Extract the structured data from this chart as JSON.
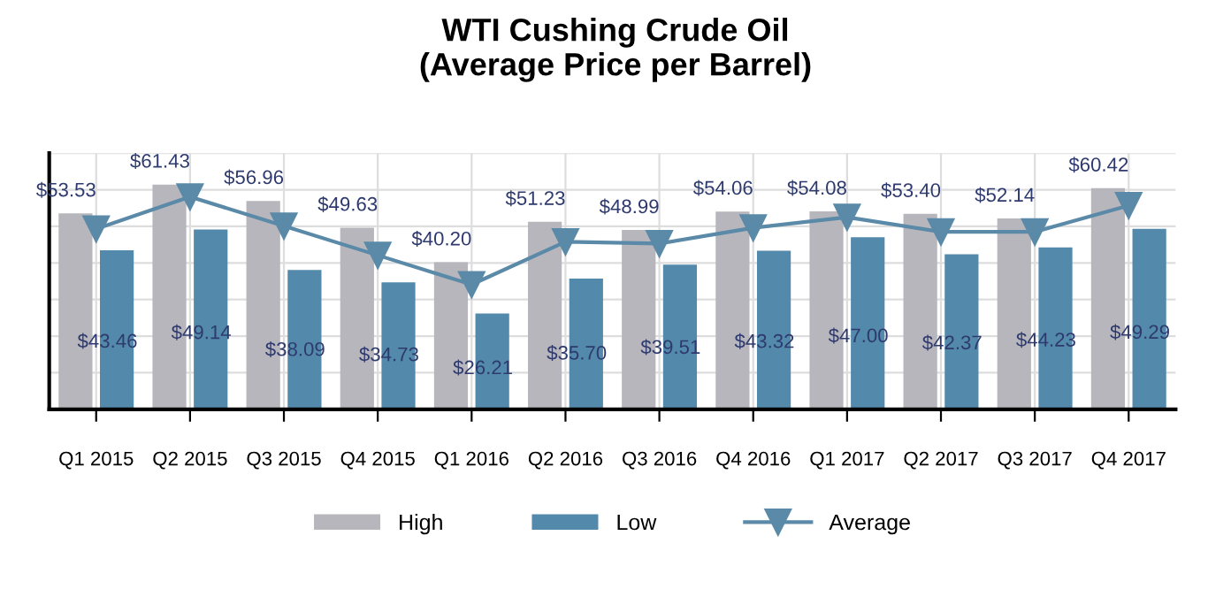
{
  "chart_data": {
    "type": "bar",
    "title": "WTI Cushing Crude Oil\n(Average Price per Barrel)",
    "categories": [
      "Q1 2015",
      "Q2 2015",
      "Q3 2015",
      "Q4 2015",
      "Q1 2016",
      "Q2 2016",
      "Q3 2016",
      "Q4 2016",
      "Q1 2017",
      "Q2 2017",
      "Q3 2017",
      "Q4 2017"
    ],
    "series": [
      {
        "name": "High",
        "color": "#b6b6bc",
        "values": [
          53.53,
          61.43,
          56.96,
          49.63,
          40.2,
          51.23,
          48.99,
          54.06,
          54.08,
          53.4,
          52.14,
          60.42
        ],
        "value_labels": [
          "$53.53",
          "$61.43",
          "$56.96",
          "$49.63",
          "$40.20",
          "$51.23",
          "$48.99",
          "$54.06",
          "$54.08",
          "$53.40",
          "$52.14",
          "$60.42"
        ]
      },
      {
        "name": "Low",
        "color": "#5389ab",
        "values": [
          43.46,
          49.14,
          38.09,
          34.73,
          26.21,
          35.7,
          39.51,
          43.32,
          47.0,
          42.37,
          44.23,
          49.29
        ],
        "value_labels": [
          "$43.46",
          "$49.14",
          "$38.09",
          "$34.73",
          "$26.21",
          "$35.70",
          "$39.51",
          "$43.32",
          "$47.00",
          "$42.37",
          "$44.23",
          "$49.29"
        ]
      },
      {
        "name": "Average",
        "type": "line",
        "color": "#5a8aa8",
        "marker": "triangle",
        "values": [
          49.3,
          58.1,
          50.1,
          42.1,
          34.1,
          45.8,
          45.3,
          49.6,
          52.5,
          48.5,
          48.5,
          55.7
        ]
      }
    ],
    "ylim": [
      0,
      70
    ],
    "yticks": [
      {
        "value": 0,
        "label": null
      },
      {
        "value": 10,
        "label": null
      },
      {
        "value": 20,
        "label": null
      },
      {
        "value": 30,
        "label": null
      },
      {
        "value": 40,
        "label": null
      },
      {
        "value": 50,
        "label": null
      },
      {
        "value": 60,
        "label": null
      },
      {
        "value": 70,
        "label": null
      }
    ],
    "grid": true,
    "legend": "bottom"
  }
}
